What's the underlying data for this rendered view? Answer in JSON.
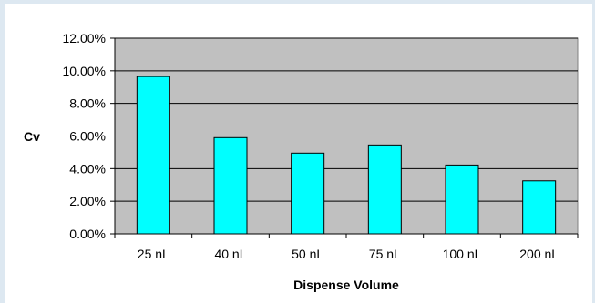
{
  "chart_data": {
    "type": "bar",
    "title": "",
    "xlabel": "Dispense Volume",
    "ylabel": "Cv",
    "categories": [
      "25 nL",
      "40 nL",
      "50 nL",
      "75 nL",
      "100 nL",
      "200 nL"
    ],
    "values": [
      0.0965,
      0.059,
      0.0495,
      0.0545,
      0.0422,
      0.0325
    ],
    "ylim": [
      0,
      0.12
    ],
    "yticks": [
      0,
      0.02,
      0.04,
      0.06,
      0.08,
      0.1,
      0.12
    ],
    "ytick_labels": [
      "0.00%",
      "2.00%",
      "4.00%",
      "6.00%",
      "8.00%",
      "10.00%",
      "12.00%"
    ],
    "grid": true,
    "legend": "none",
    "colors": {
      "plot_background": "#c0c0c0",
      "bar_fill": "#00ffff",
      "bar_stroke": "#000000",
      "gridline": "#000000"
    }
  }
}
